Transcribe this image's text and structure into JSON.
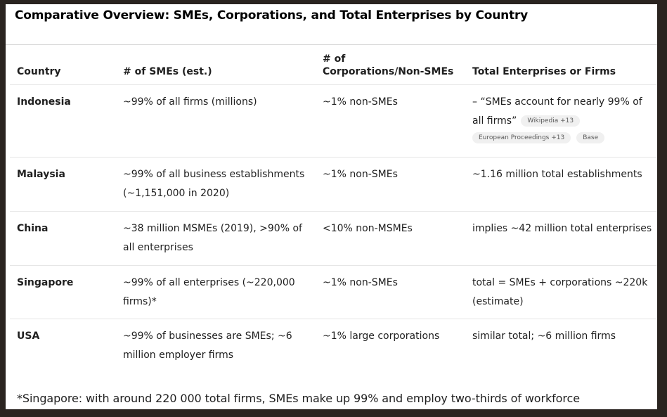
{
  "title": "Comparative Overview: SMEs, Corporations, and Total Enterprises by Country",
  "table": {
    "headers": [
      "Country",
      "# of SMEs (est.)",
      "# of Corporations/Non-SMEs",
      "Total Enterprises or Firms"
    ],
    "header_lines": {
      "col3_line1": "# of",
      "col3_line2": "Corporations/Non-SMEs"
    },
    "rows": [
      {
        "country": "Indonesia",
        "smes": "~99% of all firms (millions)",
        "corporations": "~1% non-SMEs",
        "total": "– “SMEs account for nearly 99% of all firms”",
        "chips": [
          "Wikipedia +13",
          "European Proceedings +13",
          "Base"
        ]
      },
      {
        "country": "Malaysia",
        "smes": "~99% of all business establishments (~1,151,000 in 2020)",
        "corporations": "~1% non-SMEs",
        "total": "~1.16 million total establishments"
      },
      {
        "country": "China",
        "smes": "~38 million MSMEs (2019), >90% of all enterprises",
        "corporations": "<10% non-MSMEs",
        "total": "implies ~42 million total enterprises"
      },
      {
        "country": "Singapore",
        "smes": "~99% of all enterprises (~220,000 firms)*",
        "corporations": "~1% non-SMEs",
        "total": "total = SMEs + corporations ~220k (estimate)"
      },
      {
        "country": "USA",
        "smes": "~99% of businesses are SMEs; ~6 million employer firms",
        "corporations": "~1% large corporations",
        "total": "similar total; ~6 million firms"
      }
    ]
  },
  "footnote": "*Singapore: with around 220 000 total firms, SMEs make up 99% and employ two-thirds of workforce"
}
